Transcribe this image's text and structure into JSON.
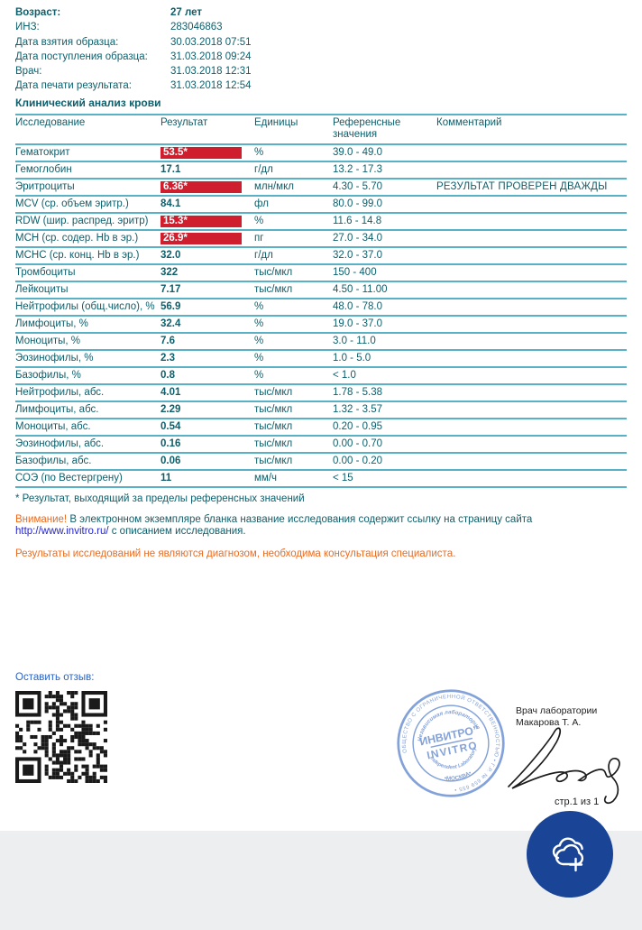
{
  "report": {
    "patient": [
      {
        "label": "Возраст:",
        "value": "27 лет",
        "bold": true
      },
      {
        "label": "ИНЗ:",
        "value": "283046863",
        "bold": false
      },
      {
        "label": "Дата взятия образца:",
        "value": "30.03.2018 07:51",
        "bold": false
      },
      {
        "label": "Дата поступления образца:",
        "value": "31.03.2018 09:24",
        "bold": false
      },
      {
        "label": "Врач:",
        "value": "31.03.2018 12:31",
        "bold": false
      },
      {
        "label": "Дата печати результата:",
        "value": "31.03.2018 12:54",
        "bold": false
      }
    ],
    "section_title": "Клинический анализ крови",
    "table": {
      "headers": [
        "Исследование",
        "Результат",
        "Единицы",
        "Референсные значения",
        "Комментарий"
      ],
      "rows": [
        {
          "name": "Гематокрит",
          "result": "53.5*",
          "flagged": true,
          "units": "%",
          "reference": "39.0 - 49.0",
          "comment": ""
        },
        {
          "name": "Гемоглобин",
          "result": "17.1",
          "flagged": false,
          "units": "г/дл",
          "reference": "13.2 - 17.3",
          "comment": ""
        },
        {
          "name": "Эритроциты",
          "result": "6.36*",
          "flagged": true,
          "units": "млн/мкл",
          "reference": "4.30 - 5.70",
          "comment": "РЕЗУЛЬТАТ ПРОВЕРЕН ДВАЖДЫ"
        },
        {
          "name": "MCV (ср. объем эритр.)",
          "result": "84.1",
          "flagged": false,
          "units": "фл",
          "reference": "80.0 - 99.0",
          "comment": ""
        },
        {
          "name": "RDW (шир. распред. эритр)",
          "result": "15.3*",
          "flagged": true,
          "units": "%",
          "reference": "11.6 - 14.8",
          "comment": ""
        },
        {
          "name": "MCH (ср. содер. Hb в эр.)",
          "result": "26.9*",
          "flagged": true,
          "units": "пг",
          "reference": "27.0 - 34.0",
          "comment": ""
        },
        {
          "name": "MCHC (ср. конц. Hb в эр.)",
          "result": "32.0",
          "flagged": false,
          "units": "г/дл",
          "reference": "32.0 - 37.0",
          "comment": ""
        },
        {
          "name": "Тромбоциты",
          "result": "322",
          "flagged": false,
          "units": "тыс/мкл",
          "reference": "150 - 400",
          "comment": ""
        },
        {
          "name": "Лейкоциты",
          "result": "7.17",
          "flagged": false,
          "units": "тыс/мкл",
          "reference": "4.50 - 11.00",
          "comment": ""
        },
        {
          "name": "Нейтрофилы (общ.число), %",
          "result": "56.9",
          "flagged": false,
          "units": "%",
          "reference": "48.0 - 78.0",
          "comment": ""
        },
        {
          "name": "Лимфоциты, %",
          "result": "32.4",
          "flagged": false,
          "units": "%",
          "reference": "19.0 - 37.0",
          "comment": ""
        },
        {
          "name": "Моноциты, %",
          "result": "7.6",
          "flagged": false,
          "units": "%",
          "reference": "3.0 - 11.0",
          "comment": ""
        },
        {
          "name": "Эозинофилы, %",
          "result": "2.3",
          "flagged": false,
          "units": "%",
          "reference": "1.0 - 5.0",
          "comment": ""
        },
        {
          "name": "Базофилы, %",
          "result": "0.8",
          "flagged": false,
          "units": "%",
          "reference": "< 1.0",
          "comment": ""
        },
        {
          "name": "Нейтрофилы, абс.",
          "result": "4.01",
          "flagged": false,
          "units": "тыс/мкл",
          "reference": "1.78 - 5.38",
          "comment": ""
        },
        {
          "name": "Лимфоциты, абс.",
          "result": "2.29",
          "flagged": false,
          "units": "тыс/мкл",
          "reference": "1.32 - 3.57",
          "comment": ""
        },
        {
          "name": "Моноциты, абс.",
          "result": "0.54",
          "flagged": false,
          "units": "тыс/мкл",
          "reference": "0.20 - 0.95",
          "comment": ""
        },
        {
          "name": "Эозинофилы, абс.",
          "result": "0.16",
          "flagged": false,
          "units": "тыс/мкл",
          "reference": "0.00 - 0.70",
          "comment": ""
        },
        {
          "name": "Базофилы, абс.",
          "result": "0.06",
          "flagged": false,
          "units": "тыс/мкл",
          "reference": "0.00 - 0.20",
          "comment": ""
        },
        {
          "name": "СОЭ (по Вестергрену)",
          "result": "11",
          "flagged": false,
          "units": "мм/ч",
          "reference": "< 15",
          "comment": ""
        }
      ]
    },
    "footnotes": {
      "star": "* Результат, выходящий за пределы референсных значений",
      "attention_prefix": "Внимание!",
      "attention_body": " В электронном экземпляре бланка название исследования содержит ссылку на страницу сайта ",
      "attention_link": "http://www.invitro.ru/",
      "attention_suffix": " с описанием исследования.",
      "disclaimer": "Результаты исследований не являются диагнозом, необходима консультация специалиста."
    },
    "feedback_label": "Оставить отзыв:",
    "stamp": {
      "outer_text": "ОБЩЕСТВО С ОГРАНИЧЕННОЙ ОТВЕТСТВЕННОСТЬЮ • Г.Р. № 659 655 •",
      "inner_top": "Независимая лаборатория",
      "center_line1": "ИНВИТРО”",
      "center_line2": "INVITRO",
      "inner_bottom": "Independent Laboratory",
      "city": "•МОСКВА•"
    },
    "doctor": {
      "title": "Врач лаборатории",
      "name": "Макарова Т. А."
    },
    "page_label": "стр.1 из 1"
  },
  "colors": {
    "teal_text": "#0d5f6b",
    "name_blue": "#2425d0",
    "flag_red": "#cf1f2f",
    "orange": "#ee6a1d",
    "row_border": "#58b1c4",
    "stamp_blue": "#6e92d3",
    "fab_blue": "#1a4496",
    "footer_gray": "#eceef0"
  }
}
